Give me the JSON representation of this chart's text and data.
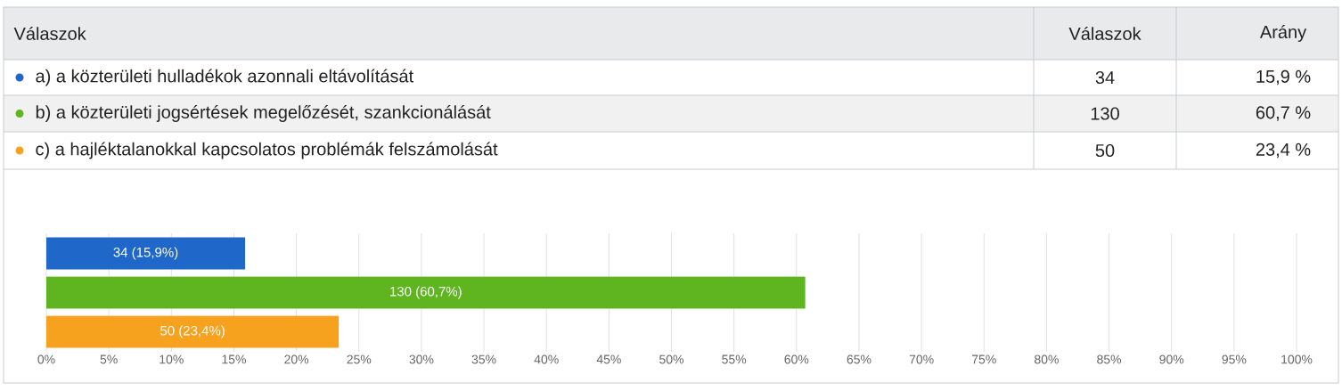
{
  "chart_data": {
    "type": "bar",
    "orientation": "horizontal",
    "categories": [
      null
    ],
    "series": [
      {
        "name": "a) a közterületi hulladékok azonnali eltávolítását",
        "color": "#1f68c9",
        "values": [
          15.9
        ],
        "value_labels": [
          "34 (15,9%)"
        ]
      },
      {
        "name": "b) a közterületi jogsértések megelőzését, szankcionálását",
        "color": "#5fb520",
        "values": [
          60.7
        ],
        "value_labels": [
          "130 (60,7%)"
        ]
      },
      {
        "name": "c) a hajléktalanokkal kapcsolatos problémák felszámolását",
        "color": "#f7a21f",
        "values": [
          23.4
        ],
        "value_labels": [
          "50 (23,4%)"
        ]
      }
    ],
    "legend": "top",
    "xlim": [
      0,
      100
    ],
    "xticks": [
      {
        "value": 0,
        "label": "0%"
      },
      {
        "value": 5,
        "label": "5%"
      },
      {
        "value": 10,
        "label": "10%"
      },
      {
        "value": 15,
        "label": "15%"
      },
      {
        "value": 20,
        "label": "20%"
      },
      {
        "value": 25,
        "label": "25%"
      },
      {
        "value": 30,
        "label": "30%"
      },
      {
        "value": 35,
        "label": "35%"
      },
      {
        "value": 40,
        "label": "40%"
      },
      {
        "value": 45,
        "label": "45%"
      },
      {
        "value": 50,
        "label": "50%"
      },
      {
        "value": 55,
        "label": "55%"
      },
      {
        "value": 60,
        "label": "60%"
      },
      {
        "value": 65,
        "label": "65%"
      },
      {
        "value": 70,
        "label": "70%"
      },
      {
        "value": 75,
        "label": "75%"
      },
      {
        "value": 80,
        "label": "80%"
      },
      {
        "value": 85,
        "label": "85%"
      },
      {
        "value": 90,
        "label": "90%"
      },
      {
        "value": 95,
        "label": "95%"
      },
      {
        "value": 100,
        "label": "100%"
      }
    ],
    "grid": "x",
    "annotations": [
      "Válaszok",
      "Válaszok",
      "Arány",
      "34",
      "15,9 %",
      "130",
      "60,7 %",
      "50",
      "23,4 %"
    ]
  }
}
